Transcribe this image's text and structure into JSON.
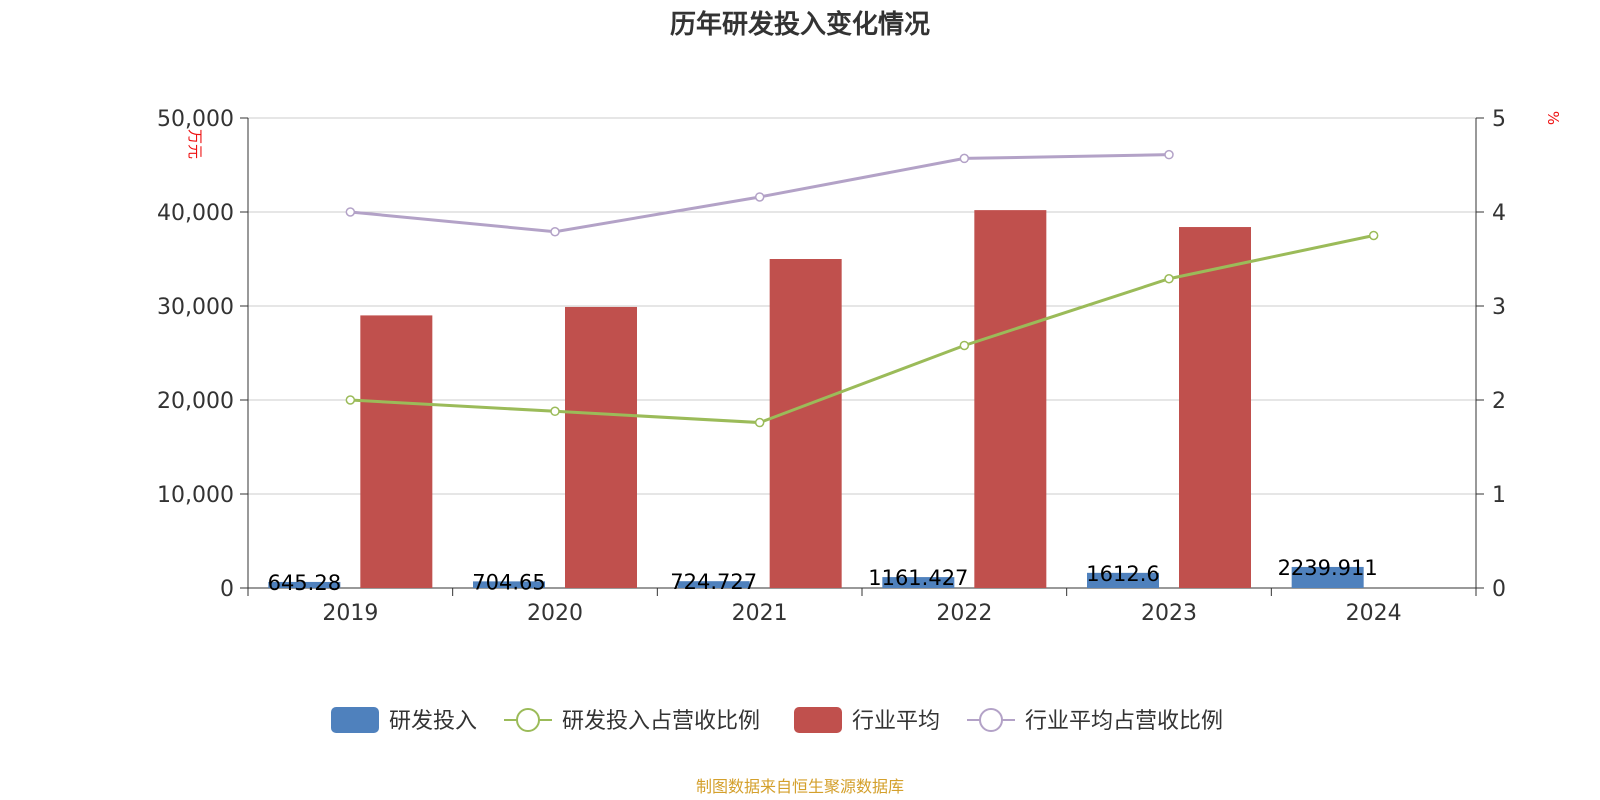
{
  "source_note": "制图数据来自恒生聚源数据库",
  "colors": {
    "rd_bar": "#4f81bd",
    "industry_bar": "#c0504d",
    "rd_ratio_line": "#9bbb59",
    "industry_ratio_line": "#b3a2c7",
    "grid": "#cccccc",
    "axis": "#333333",
    "unit_text": "#ee1111",
    "source_text": "#d4a02c"
  },
  "chart_data": {
    "type": "bar",
    "title": "历年研发投入变化情况",
    "categories": [
      "2019",
      "2020",
      "2021",
      "2022",
      "2023",
      "2024"
    ],
    "y_left": {
      "label": "万元",
      "ylim": [
        0,
        50000
      ],
      "ticks": [
        "0",
        "10,000",
        "20,000",
        "30,000",
        "40,000",
        "50,000"
      ]
    },
    "y_right": {
      "label": "%",
      "ylim": [
        0,
        5
      ],
      "ticks": [
        "0",
        "1",
        "2",
        "3",
        "4",
        "5"
      ]
    },
    "grid": true,
    "legend_position": "bottom",
    "series": [
      {
        "name": "研发投入",
        "type": "bar",
        "axis": "left",
        "color": "#4f81bd",
        "values": [
          645.28,
          704.65,
          724.727,
          1161.427,
          1612.6,
          2239.911
        ],
        "labels": [
          "645.28",
          "704.65",
          "724.727",
          "1161.427",
          "1612.6",
          "2239.911"
        ]
      },
      {
        "name": "研发投入占营收比例",
        "type": "line",
        "axis": "right",
        "color": "#9bbb59",
        "values": [
          2.0,
          1.88,
          1.76,
          2.58,
          3.29,
          3.75
        ]
      },
      {
        "name": "行业平均",
        "type": "bar",
        "axis": "left",
        "color": "#c0504d",
        "values": [
          29000,
          29900,
          35000,
          40200,
          38400,
          null
        ]
      },
      {
        "name": "行业平均占营收比例",
        "type": "line",
        "axis": "right",
        "color": "#b3a2c7",
        "values": [
          4.0,
          3.79,
          4.16,
          4.57,
          4.61,
          null
        ]
      }
    ]
  }
}
